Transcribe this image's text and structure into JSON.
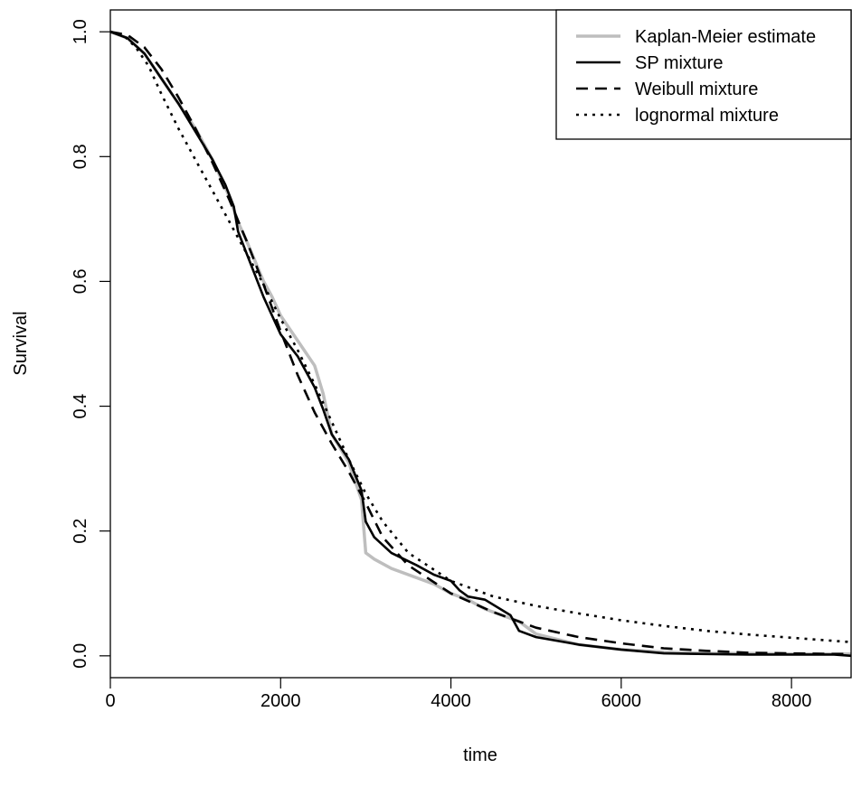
{
  "chart_data": {
    "type": "line",
    "title": "",
    "xlabel": "time",
    "ylabel": "Survival",
    "xlim": [
      0,
      8700
    ],
    "ylim": [
      -0.035,
      1.035
    ],
    "xticks": [
      0,
      2000,
      4000,
      6000,
      8000
    ],
    "yticks": [
      0.0,
      0.2,
      0.4,
      0.6,
      0.8,
      1.0
    ],
    "xtick_labels": [
      "0",
      "2000",
      "4000",
      "6000",
      "8000"
    ],
    "ytick_labels": [
      "0.0",
      "0.2",
      "0.4",
      "0.6",
      "0.8",
      "1.0"
    ],
    "grid": false,
    "legend_position": "top-right",
    "series": [
      {
        "name": "Kaplan-Meier estimate",
        "color": "#bebebe",
        "style": "solid",
        "x": [
          0,
          200,
          400,
          600,
          800,
          1000,
          1200,
          1400,
          1500,
          1600,
          1800,
          1900,
          2000,
          2200,
          2400,
          2500,
          2600,
          2800,
          2950,
          3000,
          3100,
          3300,
          3600,
          3800,
          4000,
          4200,
          4400,
          4600,
          4800,
          5000,
          5200,
          5500,
          6000,
          6500,
          7000,
          7500,
          8000,
          8500,
          8700
        ],
        "y": [
          1.0,
          0.99,
          0.965,
          0.925,
          0.885,
          0.845,
          0.795,
          0.735,
          0.695,
          0.665,
          0.6,
          0.575,
          0.545,
          0.505,
          0.465,
          0.42,
          0.355,
          0.31,
          0.25,
          0.165,
          0.155,
          0.14,
          0.125,
          0.115,
          0.1,
          0.09,
          0.075,
          0.065,
          0.055,
          0.035,
          0.028,
          0.018,
          0.01,
          0.006,
          0.004,
          0.004,
          0.003,
          0.003,
          0.003
        ]
      },
      {
        "name": "SP mixture",
        "color": "#000000",
        "style": "solid",
        "x": [
          0,
          200,
          400,
          600,
          800,
          1000,
          1200,
          1350,
          1450,
          1500,
          1600,
          1800,
          2000,
          2200,
          2400,
          2500,
          2600,
          2800,
          2950,
          3000,
          3100,
          3300,
          3600,
          3800,
          4000,
          4100,
          4200,
          4400,
          4700,
          4800,
          5000,
          5500,
          6000,
          6500,
          7000,
          7500,
          8000,
          8500,
          8700
        ],
        "y": [
          1.0,
          0.99,
          0.965,
          0.925,
          0.885,
          0.84,
          0.795,
          0.755,
          0.72,
          0.68,
          0.645,
          0.575,
          0.515,
          0.48,
          0.43,
          0.395,
          0.355,
          0.315,
          0.265,
          0.215,
          0.19,
          0.165,
          0.145,
          0.13,
          0.12,
          0.105,
          0.095,
          0.09,
          0.065,
          0.04,
          0.03,
          0.018,
          0.01,
          0.004,
          0.003,
          0.002,
          0.002,
          0.002,
          0.0
        ]
      },
      {
        "name": "Weibull mixture",
        "color": "#000000",
        "style": "dashed",
        "x": [
          0,
          200,
          400,
          600,
          800,
          1000,
          1200,
          1400,
          1600,
          1800,
          2000,
          2200,
          2400,
          2600,
          2800,
          3000,
          3200,
          3500,
          4000,
          4500,
          5000,
          5500,
          6000,
          6500,
          7000,
          7500,
          8000,
          8500,
          8700
        ],
        "y": [
          1.0,
          0.995,
          0.975,
          0.94,
          0.895,
          0.845,
          0.79,
          0.73,
          0.665,
          0.595,
          0.52,
          0.45,
          0.39,
          0.34,
          0.295,
          0.245,
          0.19,
          0.145,
          0.1,
          0.07,
          0.045,
          0.03,
          0.02,
          0.012,
          0.008,
          0.005,
          0.004,
          0.003,
          0.003
        ]
      },
      {
        "name": "lognormal mixture",
        "color": "#000000",
        "style": "dotted",
        "x": [
          0,
          150,
          300,
          450,
          600,
          800,
          1000,
          1200,
          1400,
          1600,
          1800,
          2000,
          2200,
          2400,
          2600,
          2800,
          3000,
          3200,
          3500,
          4000,
          4500,
          5000,
          5500,
          6000,
          6500,
          7000,
          7500,
          8000,
          8500,
          8700
        ],
        "y": [
          1.0,
          0.995,
          0.975,
          0.945,
          0.9,
          0.845,
          0.795,
          0.745,
          0.695,
          0.645,
          0.595,
          0.54,
          0.49,
          0.435,
          0.375,
          0.315,
          0.26,
          0.215,
          0.165,
          0.12,
          0.095,
          0.08,
          0.068,
          0.057,
          0.048,
          0.04,
          0.034,
          0.029,
          0.024,
          0.022
        ]
      }
    ]
  }
}
